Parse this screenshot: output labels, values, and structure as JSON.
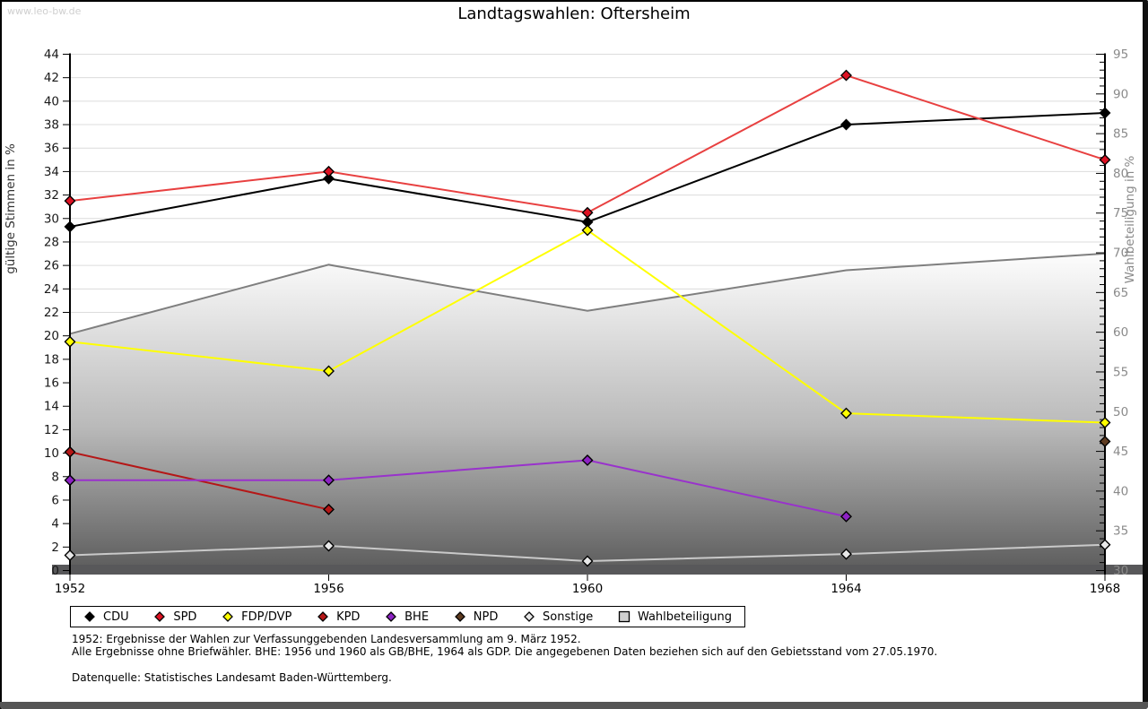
{
  "header": {
    "watermark": "www.leo-bw.de",
    "title": "Landtagswahlen: Oftersheim"
  },
  "chart_data": {
    "type": "line",
    "title": "Landtagswahlen: Oftersheim",
    "x": [
      1952,
      1956,
      1960,
      1964,
      1968
    ],
    "axes": {
      "left": {
        "label": "gültige Stimmen in %",
        "min": 0,
        "max": 44,
        "tick_step": 2
      },
      "right": {
        "label": "Wahlbeteiligung in %",
        "min": 30,
        "max": 95,
        "tick_step": 5,
        "minor_tick_step": 1
      }
    },
    "grid": true,
    "legend_position": "bottom",
    "series": [
      {
        "name": "CDU",
        "type": "line",
        "axis": "left",
        "color": "#000000",
        "marker": "diamond",
        "marker_fill": "#000000",
        "values": [
          29.3,
          33.4,
          29.7,
          38.0,
          39.0
        ]
      },
      {
        "name": "SPD",
        "type": "line",
        "axis": "left",
        "color": "#e84040",
        "marker": "diamond",
        "marker_fill": "#dd1122",
        "values": [
          31.5,
          34.0,
          30.5,
          42.2,
          35.0
        ]
      },
      {
        "name": "FDP/DVP",
        "type": "line",
        "axis": "left",
        "color": "#ffff00",
        "marker": "diamond",
        "marker_fill": "#ffff00",
        "values": [
          19.5,
          17.0,
          29.0,
          13.4,
          12.6
        ]
      },
      {
        "name": "KPD",
        "type": "line",
        "axis": "left",
        "color": "#b51717",
        "marker": "diamond",
        "marker_fill": "#b51717",
        "values": [
          10.1,
          5.2,
          null,
          null,
          null
        ]
      },
      {
        "name": "BHE",
        "type": "line",
        "axis": "left",
        "color": "#9932cc",
        "marker": "diamond",
        "marker_fill": "#8d22c4",
        "values": [
          7.7,
          7.7,
          9.4,
          4.6,
          null
        ]
      },
      {
        "name": "NPD",
        "type": "line",
        "axis": "left",
        "color": "#5e3b20",
        "marker": "diamond",
        "marker_fill": "#5e3b20",
        "values": [
          null,
          null,
          null,
          null,
          11.0
        ]
      },
      {
        "name": "Sonstige",
        "type": "line",
        "axis": "left",
        "color": "#c9c9c9",
        "marker": "diamond",
        "marker_fill": "#e8e8e8",
        "values": [
          1.3,
          2.1,
          0.8,
          1.4,
          2.2
        ]
      },
      {
        "name": "Wahlbeteiligung",
        "type": "area",
        "axis": "right",
        "color": "#7f7f7f",
        "marker": "square",
        "marker_fill": "#d0d0d0",
        "values": [
          59.8,
          68.5,
          62.7,
          67.8,
          69.9
        ]
      }
    ]
  },
  "notes": {
    "line1": "1952: Ergebnisse der Wahlen zur Verfassunggebenden Landesversammlung am 9. März 1952.",
    "line2": "Alle Ergebnisse ohne Briefwähler. BHE: 1956 und 1960 als GB/BHE, 1964 als GDP. Die angegebenen Daten beziehen sich auf den Gebietsstand vom 27.05.1970.",
    "source": "Datenquelle: Statistisches Landesamt Baden-Württemberg."
  }
}
